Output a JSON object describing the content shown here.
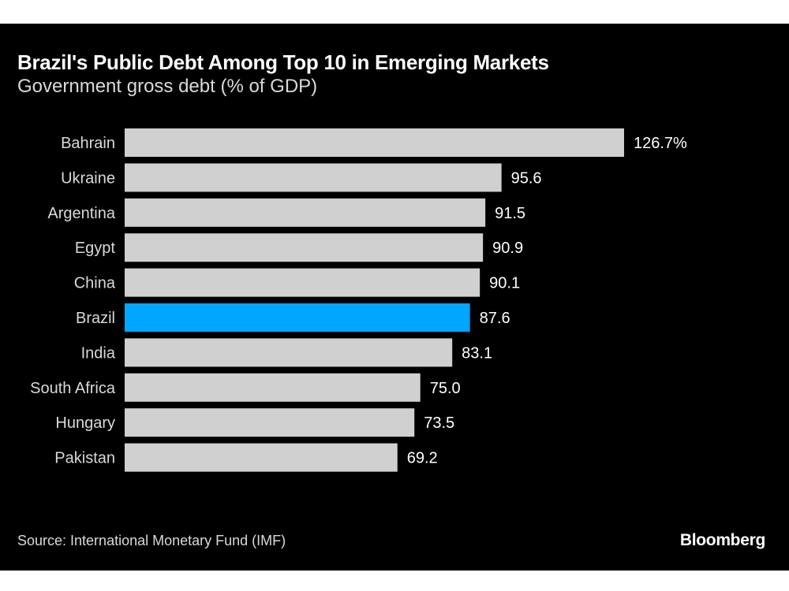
{
  "header": {
    "title": "Brazil's Public Debt Among Top 10 in Emerging Markets",
    "subtitle": "Government gross debt (% of GDP)"
  },
  "footer": {
    "source": "Source: International Monetary Fund (IMF)",
    "brand": "Bloomberg"
  },
  "colors": {
    "background": "#000000",
    "bar_default": "#d0d0d0",
    "bar_highlight": "#00a6ff",
    "label_text": "#d9d9d9",
    "value_text": "#ffffff"
  },
  "chart_data": {
    "type": "bar",
    "orientation": "horizontal",
    "title": "Brazil's Public Debt Among Top 10 in Emerging Markets",
    "subtitle": "Government gross debt (% of GDP)",
    "xlabel": "",
    "ylabel": "",
    "xlim": [
      0,
      126.7
    ],
    "grid": false,
    "legend": "none",
    "categories": [
      "Bahrain",
      "Ukraine",
      "Argentina",
      "Egypt",
      "China",
      "Brazil",
      "India",
      "South Africa",
      "Hungary",
      "Pakistan"
    ],
    "values": [
      126.7,
      95.6,
      91.5,
      90.9,
      90.1,
      87.6,
      83.1,
      75.0,
      73.5,
      69.2
    ],
    "value_labels": [
      "126.7%",
      "95.6",
      "91.5",
      "90.9",
      "90.1",
      "87.6",
      "83.1",
      "75.0",
      "73.5",
      "69.2"
    ],
    "highlight": "Brazil"
  }
}
